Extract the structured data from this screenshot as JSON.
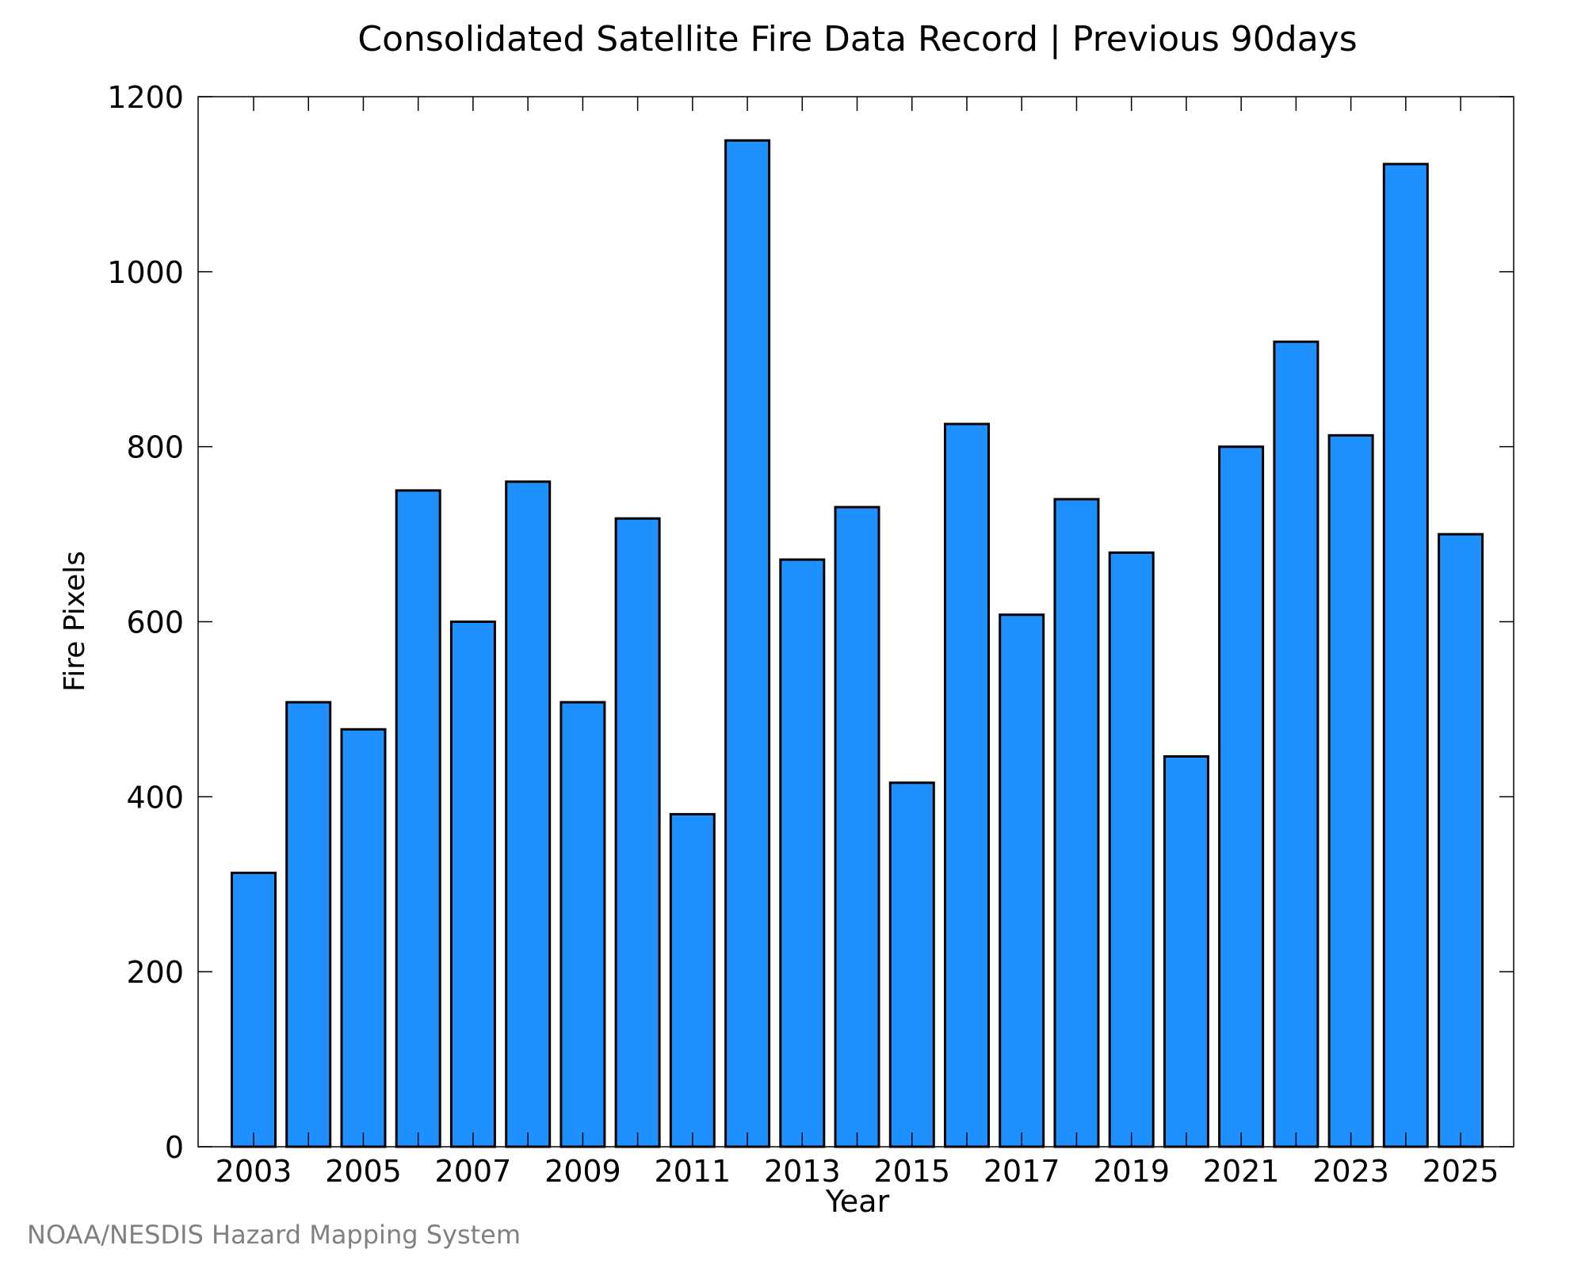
{
  "chart_data": {
    "type": "bar",
    "title": "Consolidated Satellite Fire Data Record | Previous 90days",
    "xlabel": "Year",
    "ylabel": "Fire Pixels",
    "categories": [
      "2003",
      "2004",
      "2005",
      "2006",
      "2007",
      "2008",
      "2009",
      "2010",
      "2011",
      "2012",
      "2013",
      "2014",
      "2015",
      "2016",
      "2017",
      "2018",
      "2019",
      "2020",
      "2021",
      "2022",
      "2023",
      "2024",
      "2025"
    ],
    "values": [
      313,
      508,
      477,
      750,
      600,
      760,
      508,
      718,
      380,
      1150,
      671,
      731,
      416,
      826,
      608,
      740,
      679,
      446,
      800,
      920,
      813,
      1123,
      700
    ],
    "x_tick_labels": [
      "2003",
      "2005",
      "2007",
      "2009",
      "2011",
      "2013",
      "2015",
      "2017",
      "2019",
      "2021",
      "2023",
      "2025"
    ],
    "y_ticks": [
      0,
      200,
      400,
      600,
      800,
      1000,
      1200
    ],
    "ylim": [
      0,
      1200
    ],
    "grid": false,
    "legend": "none",
    "colors": {
      "bar_fill": "#1e90ff",
      "bar_stroke": "#000000",
      "axis": "#000000"
    }
  },
  "footer": {
    "credit": "NOAA/NESDIS Hazard Mapping System"
  }
}
